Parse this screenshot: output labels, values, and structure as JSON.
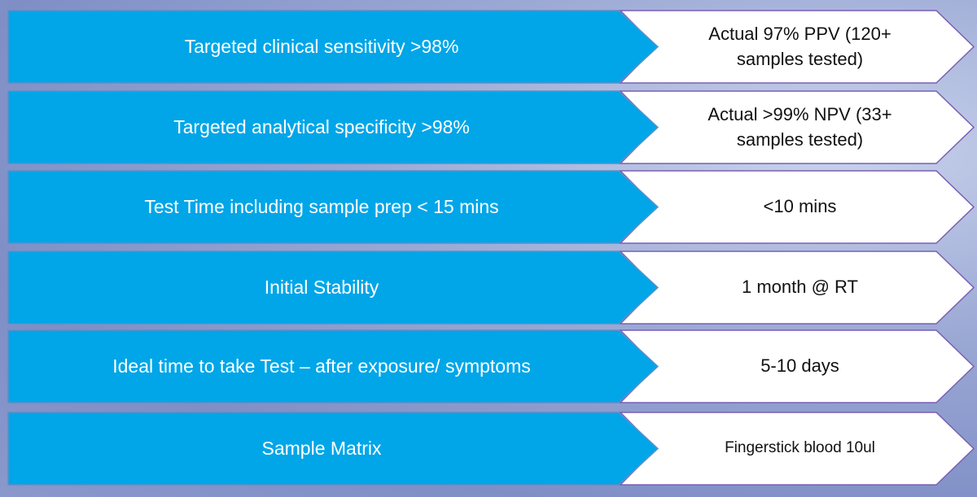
{
  "rows": [
    {
      "target": "Targeted clinical sensitivity >98%",
      "actual": "Actual 97% PPV (120+ samples tested)"
    },
    {
      "target": "Targeted analytical specificity >98%",
      "actual": "Actual >99% NPV (33+ samples tested)"
    },
    {
      "target": "Test Time including sample prep < 15 mins",
      "actual": "<10 mins"
    },
    {
      "target": "Initial Stability",
      "actual": "1 month @ RT"
    },
    {
      "target": "Ideal time to take Test – after exposure/ symptoms",
      "actual": "5-10 days"
    },
    {
      "target": "Sample Matrix",
      "actual": "Fingerstick blood 10ul"
    }
  ]
}
